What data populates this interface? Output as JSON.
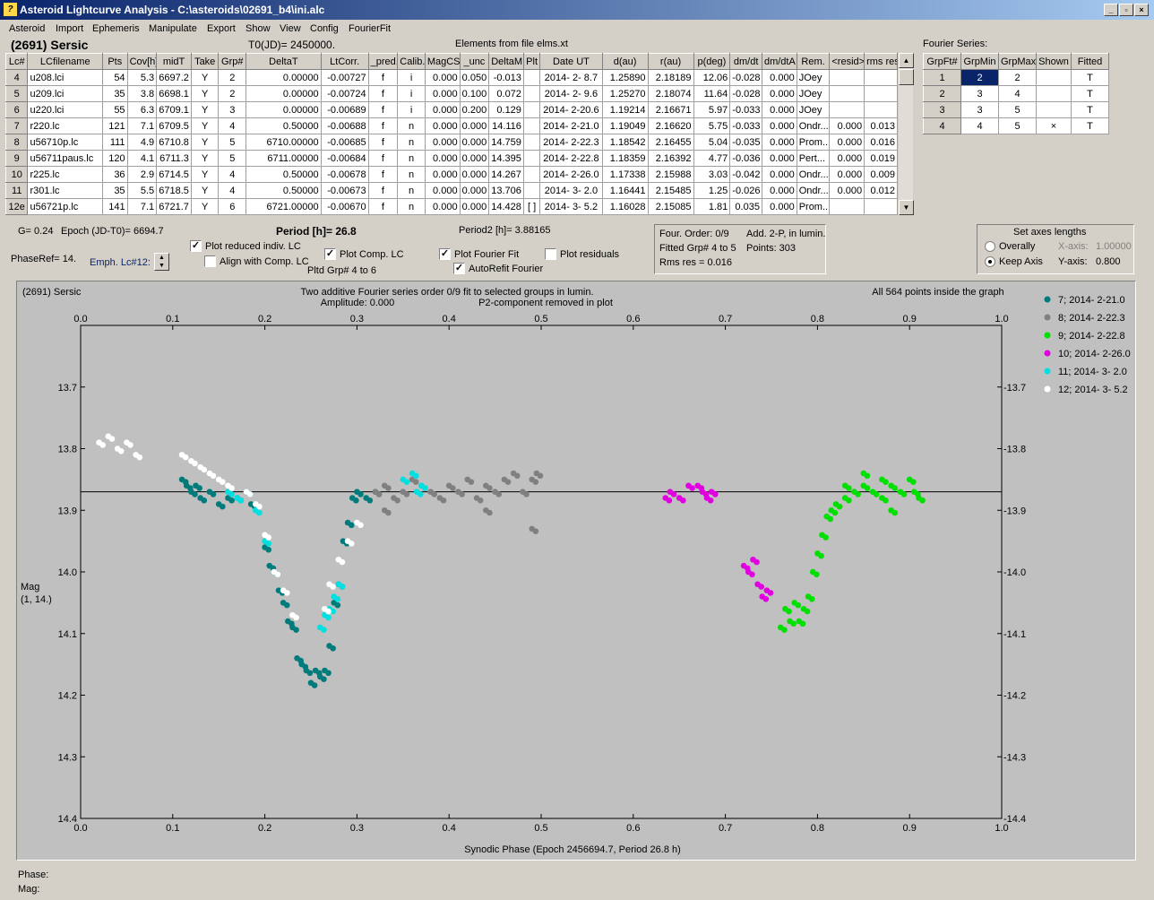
{
  "window": {
    "title": "Asteroid Lightcurve Analysis - C:\\asteroids\\02691_b4\\ini.alc",
    "icon": "app-icon",
    "controls": [
      "_",
      "▫",
      "×"
    ]
  },
  "menu": [
    "Asteroid",
    "Import",
    "Ephemeris",
    "Manipulate",
    "Export",
    "Show",
    "View",
    "Config",
    "FourierFit"
  ],
  "header": {
    "asteroid": "(2691) Sersic",
    "t0": "T0(JD)= 2450000.",
    "elements": "Elements from file elms.xt"
  },
  "lc_table": {
    "columns": [
      "Lc#",
      "LCfilename",
      "Pts",
      "Cov[h]",
      "midT",
      "Take",
      "Grp#",
      "DeltaT",
      "LtCorr.",
      "_pred.",
      "Calib.",
      "MagCS",
      "_unc",
      "DeltaM",
      "Plt",
      "Date UT",
      "d(au)",
      "r(au)",
      "p(deg)",
      "dm/dt",
      "dm/dtA",
      "Rem.",
      "<resid>",
      "rms res"
    ],
    "rows": [
      [
        "4",
        "u208.lci",
        "54",
        "5.3",
        "6697.2",
        "Y",
        "2",
        "0.00000",
        "-0.00727",
        "f",
        "i",
        "0.000",
        "0.050",
        "-0.013",
        "",
        "2014- 2- 8.7",
        "1.25890",
        "2.18189",
        "12.06",
        "-0.028",
        "0.000",
        "JOey",
        "",
        ""
      ],
      [
        "5",
        "u209.lci",
        "35",
        "3.8",
        "6698.1",
        "Y",
        "2",
        "0.00000",
        "-0.00724",
        "f",
        "i",
        "0.000",
        "0.100",
        "0.072",
        "",
        "2014- 2- 9.6",
        "1.25270",
        "2.18074",
        "11.64",
        "-0.028",
        "0.000",
        "JOey",
        "",
        ""
      ],
      [
        "6",
        "u220.lci",
        "55",
        "6.3",
        "6709.1",
        "Y",
        "3",
        "0.00000",
        "-0.00689",
        "f",
        "i",
        "0.000",
        "0.200",
        "0.129",
        "",
        "2014- 2-20.6",
        "1.19214",
        "2.16671",
        "5.97",
        "-0.033",
        "0.000",
        "JOey",
        "",
        ""
      ],
      [
        "7",
        "r220.lc",
        "121",
        "7.1",
        "6709.5",
        "Y",
        "4",
        "0.50000",
        "-0.00688",
        "f",
        "n",
        "0.000",
        "0.000",
        "14.116",
        "",
        "2014- 2-21.0",
        "1.19049",
        "2.16620",
        "5.75",
        "-0.033",
        "0.000",
        "Ondr...",
        "0.000",
        "0.013"
      ],
      [
        "8",
        "u56710p.lc",
        "111",
        "4.9",
        "6710.8",
        "Y",
        "5",
        "6710.00000",
        "-0.00685",
        "f",
        "n",
        "0.000",
        "0.000",
        "14.759",
        "",
        "2014- 2-22.3",
        "1.18542",
        "2.16455",
        "5.04",
        "-0.035",
        "0.000",
        "Prom...",
        "0.000",
        "0.016"
      ],
      [
        "9",
        "u56711paus.lc",
        "120",
        "4.1",
        "6711.3",
        "Y",
        "5",
        "6711.00000",
        "-0.00684",
        "f",
        "n",
        "0.000",
        "0.000",
        "14.395",
        "",
        "2014- 2-22.8",
        "1.18359",
        "2.16392",
        "4.77",
        "-0.036",
        "0.000",
        "Pert...",
        "0.000",
        "0.019"
      ],
      [
        "10",
        "r225.lc",
        "36",
        "2.9",
        "6714.5",
        "Y",
        "4",
        "0.50000",
        "-0.00678",
        "f",
        "n",
        "0.000",
        "0.000",
        "14.267",
        "",
        "2014- 2-26.0",
        "1.17338",
        "2.15988",
        "3.03",
        "-0.042",
        "0.000",
        "Ondr...",
        "0.000",
        "0.009"
      ],
      [
        "11",
        "r301.lc",
        "35",
        "5.5",
        "6718.5",
        "Y",
        "4",
        "0.50000",
        "-0.00673",
        "f",
        "n",
        "0.000",
        "0.000",
        "13.706",
        "",
        "2014- 3- 2.0",
        "1.16441",
        "2.15485",
        "1.25",
        "-0.026",
        "0.000",
        "Ondr...",
        "0.000",
        "0.012"
      ],
      [
        "12e",
        "u56721p.lc",
        "141",
        "7.1",
        "6721.7",
        "Y",
        "6",
        "6721.00000",
        "-0.00670",
        "f",
        "n",
        "0.000",
        "0.000",
        "14.428",
        "[ ]",
        "2014- 3- 5.2",
        "1.16028",
        "2.15085",
        "1.81",
        "0.035",
        "0.000",
        "Prom...",
        "",
        ""
      ]
    ]
  },
  "fourier_table": {
    "title": "Fourier Series:",
    "columns": [
      "GrpFt#",
      "GrpMin",
      "GrpMax",
      "Shown",
      "Fitted"
    ],
    "rows": [
      [
        "1",
        "2",
        "2",
        "",
        "T"
      ],
      [
        "2",
        "3",
        "4",
        "",
        "T"
      ],
      [
        "3",
        "3",
        "5",
        "",
        "T"
      ],
      [
        "4",
        "4",
        "5",
        "×",
        "T"
      ]
    ]
  },
  "controls": {
    "g": "G= 0.24",
    "epoch": "Epoch (JD-T0)= 6694.7",
    "phaseref": "PhaseRef= 14.",
    "emph": "Emph. Lc#12:",
    "period": "Period [h]= 26.8",
    "period2": "Period2 [h]= 3.88165",
    "plot_reduced": "Plot reduced indiv. LC",
    "align": "Align with Comp. LC",
    "plot_comp": "Plot Comp. LC",
    "pltd": "Pltd Grp#  4  to   6",
    "plot_fourier": "Plot Fourier Fit",
    "autorefit": "AutoRefit Fourier",
    "plot_resid": "Plot residuals",
    "four_order": "Four. Order:  0/9",
    "add2p": "Add. 2-P, in lumin.",
    "fitted_grp": "Fitted Grp# 4 to 5",
    "points": "Points: 303",
    "rms": "Rms res     = 0.016",
    "axes_title": "Set axes lengths",
    "overally": "Overally",
    "keep_axis": "Keep Axis",
    "xaxis_lbl": "X-axis:",
    "xaxis_val": "1.00000",
    "yaxis_lbl": "Y-axis:",
    "yaxis_val": "0.800"
  },
  "chart_data": {
    "type": "scatter",
    "name_label": "(2691) Sersic",
    "title": "Two additive Fourier series order 0/9 fit to selected groups in lumin.",
    "subtitle_left": "Amplitude: 0.000",
    "subtitle_right": "P2-component removed in plot",
    "info": "All 564 points inside the graph",
    "xlabel": "Synodic Phase (Epoch 2456694.7, Period 26.8 h)",
    "ylabel": "Mag",
    "ylabel2": "(1, 14.)",
    "xlim": [
      0,
      1
    ],
    "ylim": [
      14.4,
      13.6
    ],
    "xticks": [
      "0.0",
      "0.1",
      "0.2",
      "0.3",
      "0.4",
      "0.5",
      "0.6",
      "0.7",
      "0.8",
      "0.9",
      "1.0"
    ],
    "yticks": [
      "13.7",
      "13.8",
      "13.9",
      "14.0",
      "14.1",
      "14.2",
      "14.3",
      "14.4"
    ],
    "reference_line": 13.87,
    "series": [
      {
        "name": "7; 2014- 2-21.0",
        "color": "#007b7b",
        "points": [
          [
            0.11,
            13.85
          ],
          [
            0.115,
            13.86
          ],
          [
            0.12,
            13.87
          ],
          [
            0.125,
            13.86
          ],
          [
            0.13,
            13.88
          ],
          [
            0.14,
            13.87
          ],
          [
            0.15,
            13.89
          ],
          [
            0.16,
            13.88
          ],
          [
            0.17,
            13.88
          ],
          [
            0.18,
            13.87
          ],
          [
            0.185,
            13.89
          ],
          [
            0.2,
            13.96
          ],
          [
            0.205,
            13.99
          ],
          [
            0.21,
            14.0
          ],
          [
            0.215,
            14.03
          ],
          [
            0.22,
            14.05
          ],
          [
            0.225,
            14.08
          ],
          [
            0.23,
            14.09
          ],
          [
            0.235,
            14.14
          ],
          [
            0.24,
            14.15
          ],
          [
            0.245,
            14.16
          ],
          [
            0.25,
            14.18
          ],
          [
            0.255,
            14.16
          ],
          [
            0.26,
            14.17
          ],
          [
            0.265,
            14.16
          ],
          [
            0.27,
            14.12
          ],
          [
            0.275,
            14.05
          ],
          [
            0.28,
            14.02
          ],
          [
            0.285,
            13.95
          ],
          [
            0.29,
            13.92
          ],
          [
            0.295,
            13.88
          ],
          [
            0.3,
            13.87
          ],
          [
            0.31,
            13.88
          ],
          [
            0.32,
            13.87
          ]
        ]
      },
      {
        "name": "8; 2014- 2-22.3",
        "color": "#808080",
        "points": [
          [
            0.32,
            13.87
          ],
          [
            0.33,
            13.86
          ],
          [
            0.34,
            13.88
          ],
          [
            0.35,
            13.87
          ],
          [
            0.36,
            13.85
          ],
          [
            0.37,
            13.86
          ],
          [
            0.38,
            13.87
          ],
          [
            0.39,
            13.88
          ],
          [
            0.4,
            13.86
          ],
          [
            0.41,
            13.87
          ],
          [
            0.42,
            13.85
          ],
          [
            0.43,
            13.88
          ],
          [
            0.44,
            13.86
          ],
          [
            0.45,
            13.87
          ],
          [
            0.46,
            13.85
          ],
          [
            0.47,
            13.84
          ],
          [
            0.48,
            13.87
          ],
          [
            0.49,
            13.85
          ],
          [
            0.495,
            13.84
          ],
          [
            0.49,
            13.93
          ],
          [
            0.44,
            13.9
          ],
          [
            0.33,
            13.9
          ]
        ]
      },
      {
        "name": "9; 2014- 2-22.8",
        "color": "#00e000",
        "points": [
          [
            0.76,
            14.09
          ],
          [
            0.765,
            14.06
          ],
          [
            0.77,
            14.08
          ],
          [
            0.775,
            14.05
          ],
          [
            0.78,
            14.08
          ],
          [
            0.785,
            14.06
          ],
          [
            0.79,
            14.04
          ],
          [
            0.795,
            14.0
          ],
          [
            0.8,
            13.97
          ],
          [
            0.805,
            13.94
          ],
          [
            0.81,
            13.91
          ],
          [
            0.815,
            13.9
          ],
          [
            0.82,
            13.89
          ],
          [
            0.83,
            13.88
          ],
          [
            0.84,
            13.87
          ],
          [
            0.85,
            13.86
          ],
          [
            0.86,
            13.87
          ],
          [
            0.87,
            13.88
          ],
          [
            0.88,
            13.86
          ],
          [
            0.89,
            13.87
          ],
          [
            0.9,
            13.85
          ],
          [
            0.905,
            13.87
          ],
          [
            0.91,
            13.88
          ],
          [
            0.85,
            13.84
          ],
          [
            0.87,
            13.85
          ],
          [
            0.88,
            13.9
          ],
          [
            0.83,
            13.86
          ]
        ]
      },
      {
        "name": "10; 2014- 2-26.0",
        "color": "#e000e0",
        "points": [
          [
            0.635,
            13.88
          ],
          [
            0.64,
            13.87
          ],
          [
            0.65,
            13.88
          ],
          [
            0.66,
            13.86
          ],
          [
            0.67,
            13.86
          ],
          [
            0.675,
            13.87
          ],
          [
            0.68,
            13.88
          ],
          [
            0.685,
            13.87
          ],
          [
            0.72,
            13.99
          ],
          [
            0.725,
            14.0
          ],
          [
            0.73,
            13.98
          ],
          [
            0.735,
            14.02
          ],
          [
            0.74,
            14.04
          ],
          [
            0.745,
            14.03
          ]
        ]
      },
      {
        "name": "11; 2014- 3- 2.0",
        "color": "#00e0e0",
        "points": [
          [
            0.16,
            13.87
          ],
          [
            0.17,
            13.88
          ],
          [
            0.18,
            13.87
          ],
          [
            0.19,
            13.9
          ],
          [
            0.2,
            13.95
          ],
          [
            0.21,
            14.0
          ],
          [
            0.26,
            14.09
          ],
          [
            0.265,
            14.07
          ],
          [
            0.27,
            14.06
          ],
          [
            0.275,
            14.04
          ],
          [
            0.28,
            14.02
          ],
          [
            0.35,
            13.85
          ],
          [
            0.36,
            13.84
          ],
          [
            0.365,
            13.87
          ],
          [
            0.37,
            13.86
          ]
        ]
      },
      {
        "name": "12; 2014- 3- 5.2",
        "color": "#ffffff",
        "points": [
          [
            0.02,
            13.79
          ],
          [
            0.03,
            13.78
          ],
          [
            0.04,
            13.8
          ],
          [
            0.05,
            13.79
          ],
          [
            0.06,
            13.81
          ],
          [
            0.11,
            13.81
          ],
          [
            0.12,
            13.82
          ],
          [
            0.13,
            13.83
          ],
          [
            0.14,
            13.84
          ],
          [
            0.15,
            13.85
          ],
          [
            0.16,
            13.86
          ],
          [
            0.18,
            13.87
          ],
          [
            0.19,
            13.89
          ],
          [
            0.2,
            13.94
          ],
          [
            0.21,
            14.0
          ],
          [
            0.22,
            14.03
          ],
          [
            0.23,
            14.07
          ],
          [
            0.265,
            14.06
          ],
          [
            0.27,
            14.02
          ],
          [
            0.28,
            13.98
          ],
          [
            0.29,
            13.95
          ],
          [
            0.3,
            13.92
          ]
        ]
      }
    ]
  },
  "status": {
    "phase": "Phase:",
    "mag": "Mag:"
  }
}
